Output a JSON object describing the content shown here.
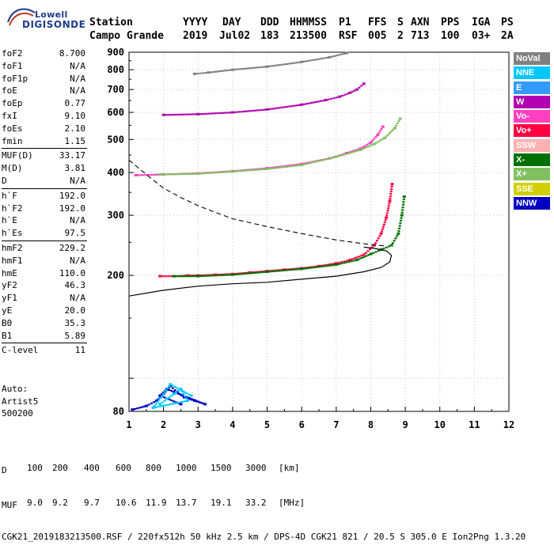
{
  "logo": {
    "top": "Lowell",
    "bottom": "DIGISONDE"
  },
  "header": {
    "labels": [
      "Station",
      "YYYY",
      "DAY",
      "DDD",
      "HHMMSS",
      "P1",
      "FFS",
      "S",
      "AXN",
      "PPS",
      "IGA",
      "PS"
    ],
    "values": [
      "Campo Grande",
      "2019",
      "Jul02",
      "183",
      "213500",
      "RSF",
      "005",
      "2",
      "713",
      "100",
      "03+",
      "2A"
    ]
  },
  "params": [
    {
      "label": "foF2",
      "value": "8.700"
    },
    {
      "label": "foF1",
      "value": "N/A"
    },
    {
      "label": "foF1p",
      "value": "N/A"
    },
    {
      "label": "foE",
      "value": "N/A"
    },
    {
      "label": "foEp",
      "value": "0.77"
    },
    {
      "label": "fxI",
      "value": "9.10"
    },
    {
      "label": "foEs",
      "value": "2.10"
    },
    {
      "label": "fmin",
      "value": "1.15"
    },
    {
      "label": "MUF(D)",
      "value": "33.17",
      "sep": true
    },
    {
      "label": "M(D)",
      "value": "3.81"
    },
    {
      "label": "D",
      "value": "N/A"
    },
    {
      "label": "h`F",
      "value": "192.0",
      "sep": true
    },
    {
      "label": "h`F2",
      "value": "192.0"
    },
    {
      "label": "h`E",
      "value": "N/A"
    },
    {
      "label": "h`Es",
      "value": "97.5"
    },
    {
      "label": "hmF2",
      "value": "229.2",
      "sep": true
    },
    {
      "label": "hmF1",
      "value": "N/A"
    },
    {
      "label": "hmE",
      "value": "110.0"
    },
    {
      "label": "yF2",
      "value": "46.3"
    },
    {
      "label": "yF1",
      "value": "N/A"
    },
    {
      "label": "yE",
      "value": "20.0"
    },
    {
      "label": "B0",
      "value": "35.3"
    },
    {
      "label": "B1",
      "value": "5.89"
    },
    {
      "label": "C-level",
      "value": "11",
      "sep": true
    }
  ],
  "auto": {
    "line1": "Auto:",
    "line2": "Artist5",
    "line3": "500200"
  },
  "legend": [
    {
      "label": "NoVal",
      "color": "#808080"
    },
    {
      "label": "NNE",
      "color": "#00c8ff"
    },
    {
      "label": "E",
      "color": "#3399ff"
    },
    {
      "label": "W",
      "color": "#b000b0"
    },
    {
      "label": "Vo-",
      "color": "#ff40c0"
    },
    {
      "label": "Vo+",
      "color": "#ff0040"
    },
    {
      "label": "SSW",
      "color": "#ffb0b0"
    },
    {
      "label": "X-",
      "color": "#007000"
    },
    {
      "label": "X+",
      "color": "#80c060"
    },
    {
      "label": "SSE",
      "color": "#d0d000"
    },
    {
      "label": "NNW",
      "color": "#0000c0"
    }
  ],
  "footer": {
    "d_label": "D",
    "d_values": [
      "100",
      "200",
      "400",
      "600",
      "800",
      "1000",
      "1500",
      "3000",
      "[km]"
    ],
    "muf_label": "MUF",
    "muf_values": [
      "9.0",
      "9.2",
      "9.7",
      "10.6",
      "11.9",
      "13.7",
      "19.1",
      "33.2",
      "[MHz]"
    ],
    "line3": "CGK21_2019183213500.RSF / 220fx512h 50 kHz 2.5 km / DPS-4D CGK21 821 / 20.5 S 305.0 E Ion2Png 1.3.20"
  },
  "chart_data": {
    "type": "scatter",
    "title": "",
    "xlabel": "",
    "ylabel": "",
    "xlim": [
      1,
      12
    ],
    "ylim": [
      80,
      900
    ],
    "y_scale": "log",
    "x_ticks": [
      1,
      2,
      3,
      4,
      5,
      6,
      7,
      8,
      9,
      10,
      11,
      12
    ],
    "y_ticks": [
      80,
      200,
      300,
      400,
      500,
      600,
      700,
      800,
      900
    ],
    "grid": true,
    "legend_position": "right",
    "series": [
      {
        "name": "Vo+",
        "points": [
          [
            1.9,
            199
          ],
          [
            2.3,
            199
          ],
          [
            2.7,
            200
          ],
          [
            3.0,
            200
          ],
          [
            3.5,
            201
          ],
          [
            4.0,
            202
          ],
          [
            4.5,
            204
          ],
          [
            5.0,
            206
          ],
          [
            5.5,
            208
          ],
          [
            6.0,
            210
          ],
          [
            6.5,
            213
          ],
          [
            7.0,
            217
          ],
          [
            7.4,
            222
          ],
          [
            7.8,
            230
          ],
          [
            8.1,
            245
          ],
          [
            8.3,
            265
          ],
          [
            8.45,
            295
          ],
          [
            8.55,
            330
          ],
          [
            8.62,
            370
          ]
        ]
      },
      {
        "name": "X-",
        "points": [
          [
            2.3,
            199
          ],
          [
            3.0,
            199
          ],
          [
            4.0,
            201
          ],
          [
            5.0,
            205
          ],
          [
            6.0,
            209
          ],
          [
            7.0,
            215
          ],
          [
            7.6,
            222
          ],
          [
            8.0,
            231
          ],
          [
            8.3,
            238
          ],
          [
            8.6,
            245
          ],
          [
            8.8,
            265
          ],
          [
            8.9,
            300
          ],
          [
            8.97,
            340
          ]
        ]
      },
      {
        "name": "Vo-",
        "points": [
          [
            1.2,
            393
          ],
          [
            2.0,
            395
          ],
          [
            3.0,
            398
          ],
          [
            4.0,
            404
          ],
          [
            5.0,
            412
          ],
          [
            6.0,
            424
          ],
          [
            6.8,
            440
          ],
          [
            7.3,
            456
          ],
          [
            7.7,
            470
          ],
          [
            8.0,
            490
          ],
          [
            8.2,
            515
          ],
          [
            8.35,
            545
          ]
        ]
      },
      {
        "name": "X+",
        "points": [
          [
            1.9,
            395
          ],
          [
            3.0,
            397
          ],
          [
            4.0,
            403
          ],
          [
            5.0,
            410
          ],
          [
            6.0,
            421
          ],
          [
            7.0,
            445
          ],
          [
            7.7,
            466
          ],
          [
            8.1,
            485
          ],
          [
            8.4,
            505
          ],
          [
            8.7,
            540
          ],
          [
            8.85,
            575
          ]
        ]
      },
      {
        "name": "W",
        "points": [
          [
            2.0,
            590
          ],
          [
            3.0,
            593
          ],
          [
            4.0,
            600
          ],
          [
            5.0,
            612
          ],
          [
            6.0,
            632
          ],
          [
            6.7,
            652
          ],
          [
            7.1,
            667
          ],
          [
            7.4,
            685
          ],
          [
            7.6,
            700
          ],
          [
            7.8,
            728
          ]
        ]
      },
      {
        "name": "NoVal",
        "points": [
          [
            2.9,
            778
          ],
          [
            3.3,
            785
          ],
          [
            4.0,
            800
          ],
          [
            5.0,
            817
          ],
          [
            6.0,
            843
          ],
          [
            6.8,
            870
          ],
          [
            7.3,
            895
          ]
        ]
      },
      {
        "name": "NNW",
        "points": [
          [
            1.1,
            81
          ],
          [
            1.5,
            83
          ],
          [
            1.8,
            86
          ],
          [
            2.0,
            90
          ],
          [
            2.2,
            95
          ],
          [
            2.4,
            91
          ],
          [
            2.6,
            88
          ],
          [
            2.9,
            86
          ],
          [
            3.2,
            84
          ],
          [
            2.1,
            93
          ],
          [
            1.9,
            89
          ],
          [
            2.5,
            84
          ]
        ]
      },
      {
        "name": "NNE",
        "points": [
          [
            1.9,
            84
          ],
          [
            2.1,
            87
          ],
          [
            2.3,
            90
          ],
          [
            2.5,
            93
          ],
          [
            2.7,
            86
          ],
          [
            1.7,
            82
          ],
          [
            2.2,
            96
          ],
          [
            2.8,
            89
          ]
        ]
      }
    ],
    "profile": {
      "name": "profile",
      "points": [
        [
          1.0,
          174
        ],
        [
          2.0,
          181
        ],
        [
          3.0,
          186
        ],
        [
          4.0,
          189
        ],
        [
          5.0,
          191
        ],
        [
          6.0,
          195
        ],
        [
          7.0,
          199
        ],
        [
          7.8,
          205
        ],
        [
          8.3,
          211
        ],
        [
          8.55,
          219
        ],
        [
          8.6,
          229
        ],
        [
          8.45,
          236
        ],
        [
          8.1,
          240
        ],
        [
          7.8,
          242
        ]
      ]
    },
    "virtual_trace": {
      "name": "virtual_trace",
      "points": [
        [
          1.0,
          435
        ],
        [
          1.5,
          395
        ],
        [
          2.0,
          360
        ],
        [
          2.5,
          338
        ],
        [
          3.0,
          320
        ],
        [
          3.5,
          306
        ],
        [
          4.0,
          293
        ],
        [
          5.0,
          278
        ],
        [
          6.0,
          265
        ],
        [
          7.0,
          254
        ],
        [
          7.5,
          250
        ],
        [
          8.0,
          246
        ],
        [
          8.4,
          244
        ]
      ]
    }
  }
}
